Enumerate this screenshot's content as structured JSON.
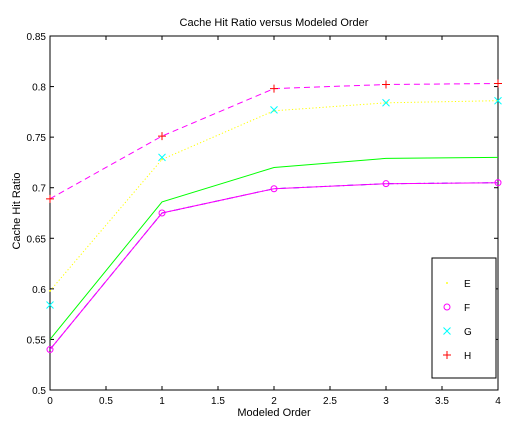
{
  "chart_data": {
    "type": "line",
    "title": "Cache Hit Ratio versus Modeled Order",
    "xlabel": "Modeled Order",
    "ylabel": "Cache Hit Ratio",
    "xlim": [
      0,
      4
    ],
    "ylim": [
      0.5,
      0.85
    ],
    "xticks": [
      0,
      0.5,
      1,
      1.5,
      2,
      2.5,
      3,
      3.5,
      4
    ],
    "xtick_labels": [
      "0",
      "0.5",
      "1",
      "1.5",
      "2",
      "2.5",
      "3",
      "3.5",
      "4"
    ],
    "yticks": [
      0.5,
      0.55,
      0.6,
      0.65,
      0.7,
      0.75,
      0.8,
      0.85
    ],
    "ytick_labels": [
      "0.5",
      "0.55",
      "0.6",
      "0.65",
      "0.7",
      "0.75",
      "0.8",
      "0.85"
    ],
    "grid": false,
    "legend_position": "bottom-right",
    "x": [
      0,
      1,
      2,
      3,
      4
    ],
    "series": [
      {
        "name": "E",
        "values": [
          0.598,
          0.728,
          0.776,
          0.784,
          0.786
        ],
        "color": "#ffff00",
        "line_style": "dotted",
        "marker": "point"
      },
      {
        "name": "F",
        "values": [
          0.54,
          0.675,
          0.699,
          0.704,
          0.705
        ],
        "color": "#ff00ff",
        "line_style": "solid",
        "marker": "circle"
      },
      {
        "name": "G",
        "values": [
          0.584,
          0.73,
          0.777,
          0.784,
          0.786
        ],
        "color": "#00ffff",
        "line_style": "none",
        "marker": "x"
      },
      {
        "name": "H",
        "values": [
          0.689,
          0.751,
          0.798,
          0.802,
          0.803
        ],
        "color": "#ff0000",
        "line_style": "none",
        "marker": "plus"
      }
    ],
    "unlabeled_lines": [
      {
        "values": [
          0.55,
          0.686,
          0.72,
          0.729,
          0.73
        ],
        "color": "#00ff00",
        "line_style": "solid"
      },
      {
        "values": [
          0.54,
          0.675,
          0.699,
          0.704,
          0.705
        ],
        "color": "#0000ff",
        "line_style": "dashdot"
      },
      {
        "values": [
          0.689,
          0.751,
          0.798,
          0.802,
          0.803
        ],
        "color": "#ff00ff",
        "line_style": "dashed"
      }
    ]
  }
}
